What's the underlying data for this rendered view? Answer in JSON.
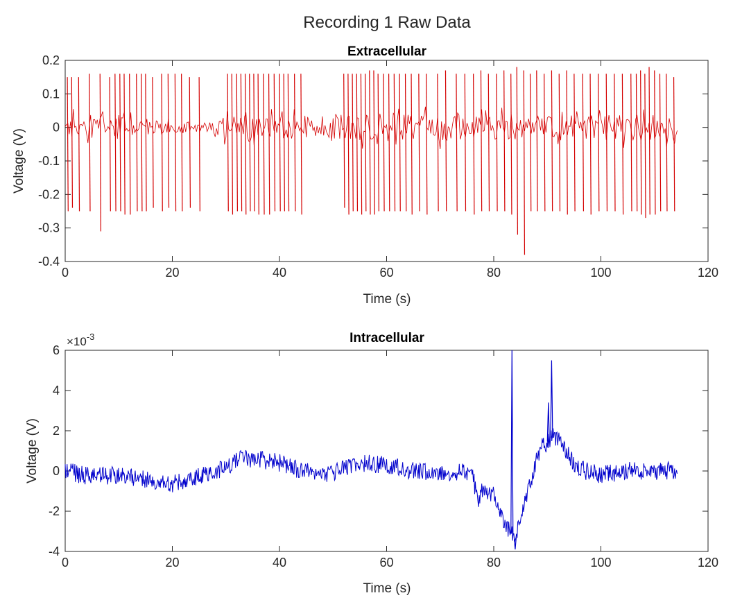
{
  "figure": {
    "title": "Recording 1 Raw Data"
  },
  "chart_data": [
    {
      "type": "line",
      "title": "Extracellular",
      "xlabel": "Time (s)",
      "ylabel": "Voltage (V)",
      "xlim": [
        0,
        120
      ],
      "ylim": [
        -0.4,
        0.2
      ],
      "xticks": [
        0,
        20,
        40,
        60,
        80,
        100,
        120
      ],
      "xtick_labels": [
        "0",
        "20",
        "40",
        "60",
        "80",
        "100",
        "120"
      ],
      "yticks": [
        0.2,
        0.1,
        0,
        -0.1,
        -0.2,
        -0.3,
        -0.4
      ],
      "ytick_labels": [
        "0.2",
        "0.1",
        "0",
        "-0.1",
        "-0.2",
        "-0.3",
        "-0.4"
      ],
      "color": "#d40000",
      "series": [
        {
          "name": "extracellular",
          "x_range": [
            0,
            114.3
          ],
          "noise_band": [
            [
              0,
              0.065
            ],
            [
              7,
              0.06
            ],
            [
              15,
              0.04
            ],
            [
              22,
              0.03
            ],
            [
              26,
              0.03
            ],
            [
              30,
              0.055
            ],
            [
              50,
              0.055
            ],
            [
              53,
              0.07
            ],
            [
              70,
              0.065
            ],
            [
              76,
              0.06
            ],
            [
              95,
              0.06
            ],
            [
              114.3,
              0.065
            ]
          ],
          "spikes": [
            [
              0.4,
              0.15,
              -0.25
            ],
            [
              1.2,
              0.15,
              -0.24
            ],
            [
              2.5,
              0.15,
              -0.25
            ],
            [
              4.5,
              0.16,
              -0.25
            ],
            [
              6.5,
              0.16,
              -0.31
            ],
            [
              8.3,
              0.15,
              -0.25
            ],
            [
              9.3,
              0.16,
              -0.25
            ],
            [
              10.2,
              0.16,
              -0.25
            ],
            [
              11.0,
              0.16,
              -0.26
            ],
            [
              12.0,
              0.16,
              -0.26
            ],
            [
              13.3,
              0.16,
              -0.25
            ],
            [
              14.2,
              0.16,
              -0.25
            ],
            [
              15.0,
              0.16,
              -0.25
            ],
            [
              16.3,
              0.15,
              -0.24
            ],
            [
              18.0,
              0.16,
              -0.25
            ],
            [
              19.2,
              0.16,
              -0.24
            ],
            [
              20.5,
              0.16,
              -0.25
            ],
            [
              21.7,
              0.16,
              -0.25
            ],
            [
              23.2,
              0.15,
              -0.24
            ],
            [
              25.0,
              0.15,
              -0.25
            ],
            [
              30.3,
              0.16,
              -0.25
            ],
            [
              31.1,
              0.16,
              -0.26
            ],
            [
              32.0,
              0.16,
              -0.25
            ],
            [
              32.8,
              0.16,
              -0.25
            ],
            [
              33.6,
              0.16,
              -0.26
            ],
            [
              34.4,
              0.16,
              -0.25
            ],
            [
              35.2,
              0.16,
              -0.25
            ],
            [
              36.0,
              0.16,
              -0.26
            ],
            [
              37.0,
              0.16,
              -0.26
            ],
            [
              38.0,
              0.16,
              -0.26
            ],
            [
              39.0,
              0.16,
              -0.25
            ],
            [
              40.0,
              0.16,
              -0.25
            ],
            [
              40.8,
              0.16,
              -0.25
            ],
            [
              41.6,
              0.16,
              -0.25
            ],
            [
              42.8,
              0.16,
              -0.25
            ],
            [
              44.0,
              0.16,
              -0.26
            ],
            [
              52.0,
              0.16,
              -0.24
            ],
            [
              52.8,
              0.16,
              -0.26
            ],
            [
              53.6,
              0.16,
              -0.25
            ],
            [
              54.4,
              0.16,
              -0.25
            ],
            [
              55.2,
              0.16,
              -0.26
            ],
            [
              56.0,
              0.16,
              -0.25
            ],
            [
              56.8,
              0.17,
              -0.26
            ],
            [
              57.6,
              0.17,
              -0.26
            ],
            [
              58.4,
              0.16,
              -0.25
            ],
            [
              59.4,
              0.16,
              -0.25
            ],
            [
              60.4,
              0.16,
              -0.25
            ],
            [
              61.4,
              0.16,
              -0.25
            ],
            [
              62.4,
              0.16,
              -0.25
            ],
            [
              63.5,
              0.16,
              -0.25
            ],
            [
              64.6,
              0.16,
              -0.26
            ],
            [
              66.0,
              0.16,
              -0.25
            ],
            [
              67.4,
              0.16,
              -0.26
            ],
            [
              69.5,
              0.16,
              -0.25
            ],
            [
              71.0,
              0.17,
              -0.25
            ],
            [
              73.0,
              0.16,
              -0.25
            ],
            [
              74.6,
              0.16,
              -0.25
            ],
            [
              76.2,
              0.16,
              -0.26
            ],
            [
              77.6,
              0.17,
              -0.25
            ],
            [
              79.0,
              0.16,
              -0.25
            ],
            [
              80.5,
              0.16,
              -0.25
            ],
            [
              81.9,
              0.17,
              -0.25
            ],
            [
              83.2,
              0.16,
              -0.26
            ],
            [
              84.3,
              0.18,
              -0.32
            ],
            [
              85.6,
              0.17,
              -0.38
            ],
            [
              86.8,
              0.16,
              -0.25
            ],
            [
              88.0,
              0.17,
              -0.25
            ],
            [
              89.4,
              0.16,
              -0.25
            ],
            [
              90.8,
              0.17,
              -0.25
            ],
            [
              92.2,
              0.16,
              -0.25
            ],
            [
              93.6,
              0.17,
              -0.26
            ],
            [
              95.0,
              0.16,
              -0.25
            ],
            [
              96.6,
              0.16,
              -0.25
            ],
            [
              98.0,
              0.16,
              -0.26
            ],
            [
              99.5,
              0.16,
              -0.25
            ],
            [
              101.0,
              0.16,
              -0.25
            ],
            [
              102.5,
              0.16,
              -0.25
            ],
            [
              104.0,
              0.16,
              -0.26
            ],
            [
              105.6,
              0.16,
              -0.25
            ],
            [
              106.6,
              0.16,
              -0.25
            ],
            [
              107.4,
              0.17,
              -0.26
            ],
            [
              108.2,
              0.16,
              -0.27
            ],
            [
              109.0,
              0.18,
              -0.26
            ],
            [
              110.0,
              0.17,
              -0.26
            ],
            [
              111.0,
              0.16,
              -0.25
            ],
            [
              112.2,
              0.16,
              -0.25
            ],
            [
              113.6,
              0.15,
              -0.25
            ]
          ]
        }
      ]
    },
    {
      "type": "line",
      "title": "Intracellular",
      "xlabel": "Time (s)",
      "ylabel": "Voltage (V)",
      "y_exponent_label": "×10",
      "y_exponent_power": "-3",
      "xlim": [
        0,
        120
      ],
      "ylim": [
        -4,
        6
      ],
      "xticks": [
        0,
        20,
        40,
        60,
        80,
        100,
        120
      ],
      "xtick_labels": [
        "0",
        "20",
        "40",
        "60",
        "80",
        "100",
        "120"
      ],
      "yticks": [
        6,
        4,
        2,
        0,
        -2,
        -4
      ],
      "ytick_labels": [
        "6",
        "4",
        "2",
        "0",
        "-2",
        "-4"
      ],
      "color": "#0000cc",
      "series": [
        {
          "name": "intracellular (x10^-3 V)",
          "x_range": [
            0,
            114.3
          ],
          "trend": [
            [
              0,
              0.0
            ],
            [
              5,
              -0.3
            ],
            [
              10,
              -0.2
            ],
            [
              15,
              -0.4
            ],
            [
              19,
              -0.7
            ],
            [
              22,
              -0.5
            ],
            [
              26,
              -0.2
            ],
            [
              30,
              0.2
            ],
            [
              33,
              0.6
            ],
            [
              36,
              0.6
            ],
            [
              40,
              0.4
            ],
            [
              44,
              0.0
            ],
            [
              48,
              -0.2
            ],
            [
              52,
              0.1
            ],
            [
              55,
              0.4
            ],
            [
              60,
              0.3
            ],
            [
              65,
              0.0
            ],
            [
              70,
              -0.1
            ],
            [
              74,
              0.0
            ],
            [
              76,
              -0.1
            ],
            [
              77,
              -1.5
            ],
            [
              78,
              -0.8
            ],
            [
              80,
              -1.2
            ],
            [
              81,
              -1.8
            ],
            [
              82,
              -2.5
            ],
            [
              83,
              -3.0
            ],
            [
              84,
              -3.3
            ],
            [
              85,
              -2.6
            ],
            [
              86,
              -1.4
            ],
            [
              87,
              -0.4
            ],
            [
              88,
              0.5
            ],
            [
              89,
              1.2
            ],
            [
              90,
              1.4
            ],
            [
              91,
              1.7
            ],
            [
              92,
              1.5
            ],
            [
              93,
              1.3
            ],
            [
              94,
              0.8
            ],
            [
              95,
              0.3
            ],
            [
              97,
              0.0
            ],
            [
              100,
              -0.2
            ],
            [
              105,
              0.0
            ],
            [
              110,
              0.0
            ],
            [
              114.3,
              0.0
            ]
          ],
          "noise_amplitude": 0.45,
          "peaks": [
            [
              83.4,
              6.0
            ],
            [
              90.8,
              5.5
            ],
            [
              90.2,
              3.4
            ],
            [
              84.0,
              -3.9
            ]
          ]
        }
      ]
    }
  ]
}
